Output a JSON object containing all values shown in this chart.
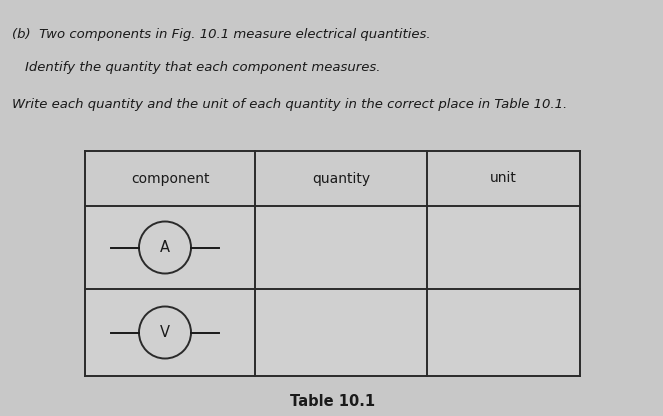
{
  "page_bg": "#c8c8c8",
  "title_line1": "(b)  Two components in Fig. 10.1 measure electrical quantities.",
  "title_line2": "Identify the quantity that each component measures.",
  "title_line3": "Write each quantity and the unit of each quantity in the correct place in Table 10.1.",
  "table_caption": "Table 10.1",
  "col_headers": [
    "component",
    "quantity",
    "unit"
  ],
  "row1_symbol": "A",
  "row2_symbol": "V",
  "text_color": "#1a1a1a",
  "table_line_color": "#2a2a2a",
  "symbol_circle_color": "#2a2a2a",
  "table_bg": "#d4d4d4",
  "fig_width": 6.63,
  "fig_height": 4.16,
  "dpi": 100
}
